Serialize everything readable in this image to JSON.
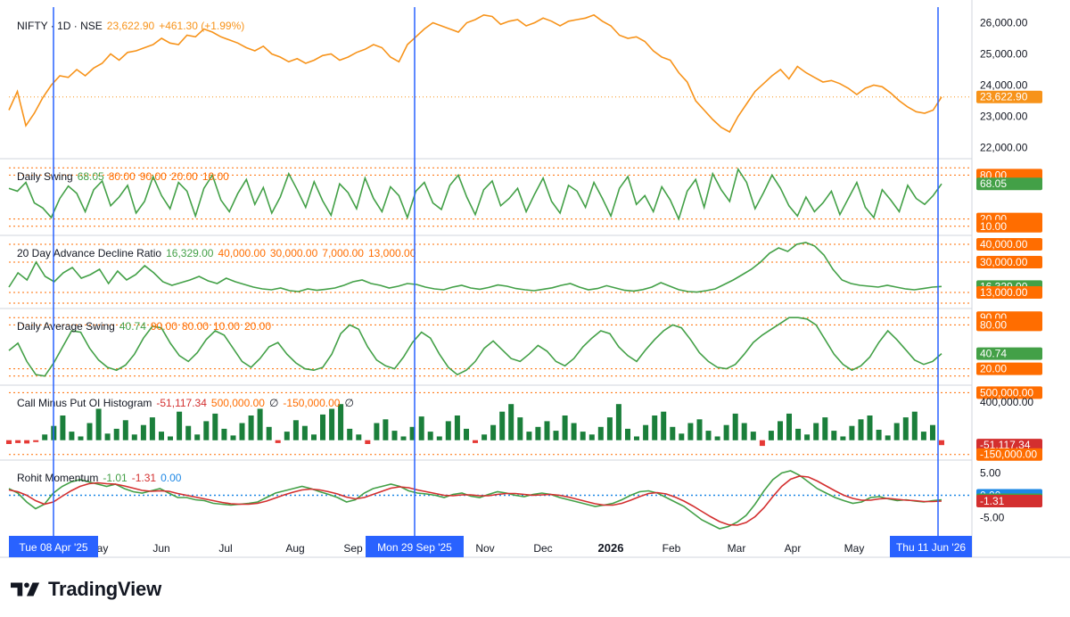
{
  "brand": {
    "name": "TradingView",
    "icon": "tradingview-logo-icon"
  },
  "colors": {
    "price": "#f7931a",
    "indicator": "#43a047",
    "signal": "#d32f2f",
    "level": "#ff6d00",
    "marker": "#2962ff",
    "zero": "#1e88e5",
    "hist_pos": "#1b7f3b",
    "hist_neg": "#e53935",
    "divider": "#d1d4dc",
    "axis_text": "#131722"
  },
  "chart_data": [
    {
      "type": "line",
      "pane": "price",
      "symbol": "NIFTY",
      "legend": {
        "title": "NIFTY · 1D · NSE",
        "value": "23,622.90",
        "change": "+461.30 (+1.99%)"
      },
      "y_ticks": [
        "26,000.00",
        "25,000.00",
        "24,000.00",
        "23,000.00",
        "22,000.00"
      ],
      "ylim": [
        21700,
        26500
      ],
      "last_value": 23622.9,
      "last_label": "23,622.90",
      "series": [
        {
          "values": [
            23200,
            23800,
            22700,
            23100,
            23600,
            24000,
            24300,
            24250,
            24500,
            24300,
            24550,
            24700,
            25000,
            24800,
            25050,
            25100,
            25200,
            25300,
            25500,
            25350,
            25300,
            25600,
            25550,
            25800,
            25700,
            25550,
            25450,
            25350,
            25200,
            25100,
            25250,
            25000,
            24900,
            24750,
            24850,
            24700,
            24800,
            24950,
            25000,
            24800,
            24900,
            25050,
            25150,
            25300,
            25200,
            24900,
            24750,
            25300,
            25550,
            25800,
            26000,
            25900,
            25800,
            25700,
            26000,
            26100,
            26250,
            26200,
            25950,
            26050,
            26100,
            25900,
            26000,
            26150,
            26050,
            25900,
            26050,
            26100,
            26150,
            26250,
            26050,
            25900,
            25600,
            25500,
            25550,
            25400,
            25100,
            24900,
            24800,
            24400,
            24100,
            23500,
            23200,
            22900,
            22650,
            22500,
            23000,
            23400,
            23800,
            24050,
            24300,
            24500,
            24200,
            24600,
            24400,
            24250,
            24100,
            24150,
            24050,
            23900,
            23700,
            23900,
            24000,
            23950,
            23750,
            23500,
            23300,
            23150,
            23100,
            23200,
            23622.9
          ]
        }
      ]
    },
    {
      "type": "line",
      "pane": "daily-swing",
      "legend": {
        "title": "Daily Swing",
        "value": "68.05",
        "levels_text": [
          "80.00",
          "90.00",
          "20.00",
          "10.00"
        ]
      },
      "levels": [
        90,
        80,
        20,
        10
      ],
      "ylim": [
        0,
        100
      ],
      "axis_labels": [
        {
          "text": "80.00",
          "value": 80,
          "kind": "level"
        },
        {
          "text": "68.05",
          "value": 68.05,
          "kind": "value"
        },
        {
          "text": "20.00",
          "value": 20,
          "kind": "level"
        },
        {
          "text": "10.00",
          "value": 10,
          "kind": "level"
        }
      ],
      "series": [
        {
          "values": [
            62,
            58,
            70,
            42,
            35,
            22,
            48,
            65,
            55,
            30,
            60,
            72,
            38,
            50,
            66,
            28,
            44,
            78,
            52,
            34,
            70,
            58,
            24,
            62,
            80,
            46,
            30,
            55,
            74,
            40,
            63,
            28,
            50,
            82,
            60,
            36,
            71,
            45,
            25,
            68,
            56,
            34,
            76,
            48,
            30,
            64,
            52,
            22,
            58,
            70,
            42,
            33,
            66,
            80,
            50,
            26,
            60,
            72,
            38,
            48,
            62,
            30,
            54,
            76,
            44,
            28,
            66,
            58,
            36,
            70,
            48,
            24,
            62,
            78,
            40,
            52,
            30,
            64,
            46,
            20,
            58,
            74,
            36,
            82,
            60,
            44,
            88,
            70,
            34,
            56,
            80,
            62,
            38,
            24,
            50,
            30,
            42,
            58,
            26,
            48,
            70,
            36,
            22,
            60,
            46,
            30,
            66,
            48,
            40,
            52,
            68.05
          ]
        }
      ]
    },
    {
      "type": "line",
      "pane": "advance-decline",
      "legend": {
        "title": "20 Day Advance Decline Ratio",
        "value": "16,329.00",
        "levels_text": [
          "40,000.00",
          "30,000.00",
          "7,000.00",
          "13,000.00"
        ]
      },
      "levels": [
        40000,
        30000,
        13000,
        7000
      ],
      "ylim": [
        5000,
        44000
      ],
      "axis_labels": [
        {
          "text": "40,000.00",
          "value": 40000,
          "kind": "level"
        },
        {
          "text": "30,000.00",
          "value": 30000,
          "kind": "level"
        },
        {
          "text": "16,329.00",
          "value": 16329,
          "kind": "value"
        },
        {
          "text": "13,000.00",
          "value": 13000,
          "kind": "level"
        }
      ],
      "series": [
        {
          "values": [
            16000,
            24000,
            20000,
            30000,
            22000,
            19000,
            24000,
            27000,
            21000,
            23000,
            26000,
            18000,
            25000,
            20000,
            23000,
            28000,
            24000,
            19000,
            17000,
            18500,
            20000,
            22000,
            19500,
            18000,
            21000,
            19000,
            17500,
            16000,
            15000,
            14500,
            15500,
            14000,
            13500,
            15000,
            14200,
            14800,
            15500,
            17000,
            19000,
            20000,
            18000,
            17000,
            15500,
            16500,
            18000,
            17500,
            16000,
            15000,
            14500,
            16000,
            17000,
            15500,
            14800,
            15800,
            17200,
            16500,
            15200,
            14500,
            14000,
            14800,
            15600,
            17000,
            18000,
            16000,
            14500,
            15200,
            16800,
            15500,
            14200,
            13800,
            14600,
            16000,
            18500,
            16500,
            14500,
            13500,
            13200,
            14000,
            15000,
            17500,
            20000,
            23000,
            26000,
            30000,
            35000,
            38000,
            36000,
            40000,
            41000,
            39000,
            34000,
            26000,
            20000,
            18000,
            17000,
            16500,
            16000,
            17000,
            16000,
            15000,
            14500,
            15200,
            16000,
            16329
          ]
        }
      ]
    },
    {
      "type": "line",
      "pane": "daily-average-swing",
      "legend": {
        "title": "Daily Average Swing",
        "value": "40.74",
        "levels_text": [
          "90.00",
          "80.00",
          "10.00",
          "20.00"
        ]
      },
      "levels": [
        90,
        80,
        20,
        10
      ],
      "ylim": [
        0,
        100
      ],
      "axis_labels": [
        {
          "text": "90.00",
          "value": 90,
          "kind": "level"
        },
        {
          "text": "80.00",
          "value": 80,
          "kind": "level"
        },
        {
          "text": "40.74",
          "value": 40.74,
          "kind": "value"
        },
        {
          "text": "20.00",
          "value": 20,
          "kind": "level"
        }
      ],
      "series": [
        {
          "values": [
            45,
            55,
            30,
            12,
            10,
            28,
            50,
            72,
            70,
            48,
            32,
            22,
            18,
            25,
            40,
            62,
            78,
            76,
            55,
            38,
            30,
            42,
            60,
            72,
            66,
            48,
            30,
            22,
            34,
            50,
            56,
            40,
            28,
            20,
            18,
            22,
            40,
            68,
            80,
            74,
            50,
            32,
            24,
            20,
            36,
            56,
            70,
            62,
            40,
            22,
            12,
            18,
            30,
            48,
            58,
            46,
            34,
            30,
            40,
            52,
            44,
            30,
            24,
            34,
            50,
            62,
            72,
            68,
            50,
            38,
            30,
            46,
            60,
            72,
            80,
            76,
            60,
            42,
            30,
            22,
            20,
            26,
            40,
            56,
            66,
            74,
            82,
            90,
            90,
            88,
            80,
            60,
            40,
            26,
            18,
            24,
            36,
            56,
            72,
            60,
            46,
            32,
            26,
            30,
            40.74
          ]
        }
      ]
    },
    {
      "type": "bar",
      "pane": "call-put-oi",
      "legend": {
        "title": "Call Minus Put OI Histogram",
        "value": "-51,117.34",
        "levels_text": [
          "500,000.00",
          "∅",
          "-150,000.00",
          "∅"
        ]
      },
      "levels": [
        500000,
        -150000
      ],
      "ylim": [
        -190000,
        560000
      ],
      "axis_labels": [
        {
          "text": "500,000.00",
          "value": 500000,
          "kind": "level"
        },
        {
          "text": "400,000.00",
          "value": 400000,
          "kind": "tick"
        },
        {
          "text": "-51,117.34",
          "value": -51117.34,
          "kind": "value_negative"
        },
        {
          "text": "-150,000.00",
          "value": -150000,
          "kind": "level"
        }
      ],
      "series": [
        {
          "values": [
            -40000,
            -30000,
            -35000,
            -20000,
            60000,
            150000,
            260000,
            90000,
            40000,
            180000,
            330000,
            70000,
            120000,
            210000,
            60000,
            160000,
            240000,
            90000,
            40000,
            300000,
            150000,
            60000,
            200000,
            280000,
            120000,
            50000,
            180000,
            260000,
            330000,
            140000,
            -30000,
            90000,
            210000,
            150000,
            60000,
            270000,
            330000,
            380000,
            120000,
            60000,
            -40000,
            180000,
            220000,
            100000,
            40000,
            140000,
            250000,
            90000,
            40000,
            200000,
            260000,
            120000,
            -30000,
            60000,
            160000,
            300000,
            380000,
            240000,
            90000,
            140000,
            200000,
            100000,
            260000,
            180000,
            90000,
            60000,
            140000,
            240000,
            380000,
            120000,
            40000,
            160000,
            260000,
            300000,
            140000,
            70000,
            180000,
            220000,
            100000,
            40000,
            160000,
            280000,
            180000,
            90000,
            -60000,
            100000,
            200000,
            280000,
            120000,
            60000,
            180000,
            240000,
            100000,
            40000,
            150000,
            220000,
            260000,
            110000,
            50000,
            180000,
            240000,
            300000,
            90000,
            160000,
            -51117.34
          ]
        }
      ]
    },
    {
      "type": "line",
      "pane": "momentum",
      "legend": {
        "title": "Rohit Momentum",
        "value": "-1.01",
        "value2": "-1.31",
        "value3": "0.00"
      },
      "ylim": [
        -8.5,
        7.5
      ],
      "zero_line": 0,
      "axis_labels": [
        {
          "text": "5.00",
          "value": 5,
          "kind": "tick"
        },
        {
          "text": "0.00",
          "value": 0,
          "kind": "zero"
        },
        {
          "text": "-1.01",
          "value": -1.01,
          "kind": "value"
        },
        {
          "text": "-1.31",
          "value": -1.31,
          "kind": "value2"
        },
        {
          "text": "-5.00",
          "value": -5,
          "kind": "tick"
        }
      ],
      "series": [
        {
          "values": [
            1.5,
            0.5,
            -1.5,
            -3.0,
            -2.0,
            0.5,
            2.0,
            3.0,
            3.5,
            3.0,
            2.5,
            2.0,
            2.5,
            1.5,
            0.8,
            0.5,
            1.0,
            1.5,
            0.5,
            -0.5,
            -0.5,
            -1.0,
            -1.2,
            -1.8,
            -2.0,
            -2.2,
            -2.0,
            -1.8,
            -1.5,
            -0.5,
            0.5,
            1.0,
            1.5,
            2.0,
            1.5,
            0.8,
            0.2,
            -0.5,
            -1.5,
            -1.0,
            0.5,
            1.5,
            2.0,
            2.5,
            2.0,
            1.0,
            0.5,
            0.3,
            0.0,
            -0.5,
            0.2,
            0.5,
            -0.2,
            -0.5,
            0.2,
            0.8,
            0.5,
            0.0,
            -0.3,
            0.2,
            0.5,
            0.2,
            -0.5,
            -1.0,
            -1.5,
            -2.0,
            -2.5,
            -2.2,
            -1.8,
            -1.0,
            0.0,
            0.8,
            1.0,
            0.5,
            -0.5,
            -1.5,
            -2.5,
            -4.0,
            -5.5,
            -6.5,
            -7.5,
            -7.0,
            -6.0,
            -4.5,
            -2.0,
            1.0,
            3.5,
            5.0,
            5.5,
            4.5,
            3.0,
            1.5,
            0.5,
            -0.5,
            -1.2,
            -1.8,
            -1.5,
            -0.5,
            -0.3,
            -0.8,
            -1.2,
            -1.0,
            -1.3,
            -1.5,
            -1.2,
            -1.01
          ]
        },
        {
          "values": [
            1.2,
            0.8,
            0.0,
            -1.2,
            -2.0,
            -1.5,
            -0.2,
            1.0,
            2.0,
            2.6,
            2.8,
            2.6,
            2.5,
            2.1,
            1.6,
            1.1,
            0.9,
            1.0,
            0.9,
            0.4,
            0.0,
            -0.4,
            -0.8,
            -1.2,
            -1.6,
            -1.9,
            -2.0,
            -2.0,
            -1.8,
            -1.3,
            -0.6,
            0.1,
            0.7,
            1.2,
            1.4,
            1.2,
            0.8,
            0.3,
            -0.4,
            -0.8,
            -0.5,
            0.2,
            0.9,
            1.6,
            1.9,
            1.7,
            1.2,
            0.8,
            0.4,
            0.0,
            -0.1,
            0.1,
            0.1,
            -0.1,
            -0.1,
            0.2,
            0.4,
            0.4,
            0.2,
            0.0,
            0.1,
            0.2,
            0.0,
            -0.4,
            -0.9,
            -1.4,
            -1.9,
            -2.2,
            -2.2,
            -1.8,
            -1.1,
            -0.3,
            0.4,
            0.6,
            0.3,
            -0.4,
            -1.3,
            -2.4,
            -3.6,
            -4.8,
            -5.9,
            -6.6,
            -6.7,
            -6.1,
            -4.8,
            -2.8,
            -0.3,
            2.0,
            3.6,
            4.3,
            4.1,
            3.2,
            2.1,
            1.0,
            0.0,
            -0.7,
            -1.1,
            -1.1,
            -0.8,
            -0.7,
            -0.9,
            -1.1,
            -1.2,
            -1.4,
            -1.4,
            -1.31
          ]
        }
      ]
    }
  ],
  "x_axis": {
    "labels": [
      {
        "text": "May",
        "bold": false
      },
      {
        "text": "Jun",
        "bold": false
      },
      {
        "text": "Jul",
        "bold": false
      },
      {
        "text": "Aug",
        "bold": false
      },
      {
        "text": "Sep",
        "bold": false
      },
      {
        "text": "Nov",
        "bold": false
      },
      {
        "text": "Dec",
        "bold": false
      },
      {
        "text": "2026",
        "bold": true
      },
      {
        "text": "Feb",
        "bold": false
      },
      {
        "text": "Mar",
        "bold": false
      },
      {
        "text": "Apr",
        "bold": false
      },
      {
        "text": "May",
        "bold": false
      }
    ],
    "markers": [
      {
        "date": "Tue 08 Apr '25",
        "label": "Tue 08 Apr '25"
      },
      {
        "date": "Mon 29 Sep '25",
        "label": "Mon 29 Sep '25"
      },
      {
        "date": "Thu 11 Jun '26",
        "label": "Thu 11 Jun '26"
      }
    ]
  }
}
